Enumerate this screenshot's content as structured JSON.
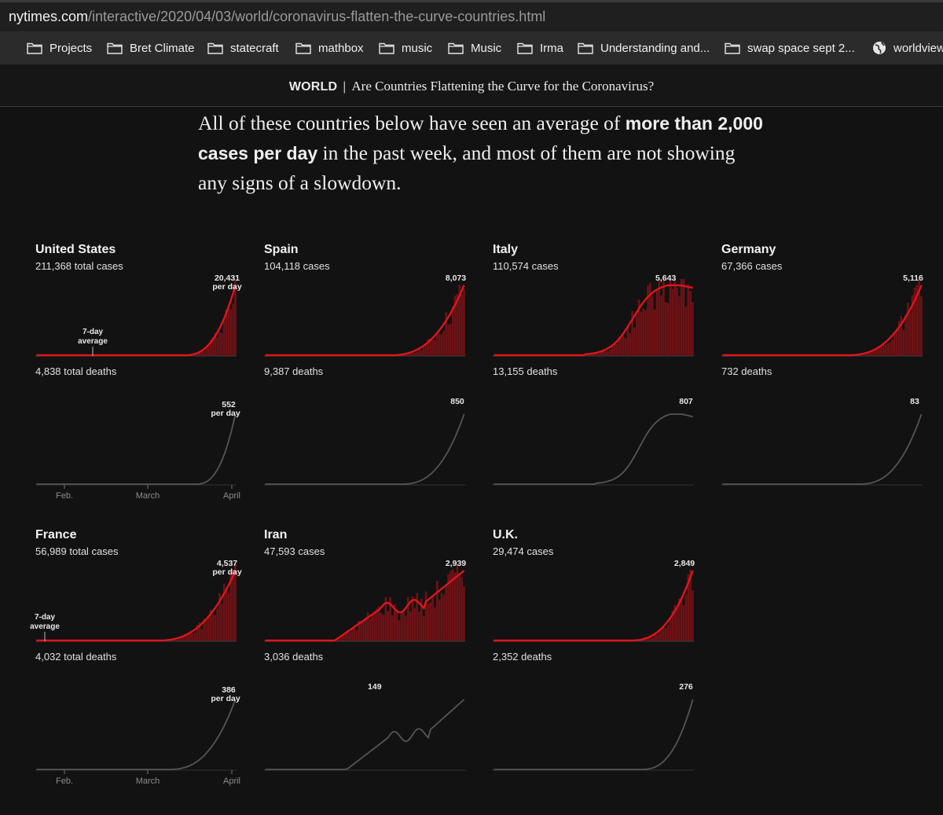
{
  "browser": {
    "url_domain": "nytimes.com",
    "url_path": "/interactive/2020/04/03/world/coronavirus-flatten-the-curve-countries.html",
    "bookmarks": [
      {
        "label": "Projects",
        "icon": "folder-icon"
      },
      {
        "label": "Bret Climate",
        "icon": "folder-icon"
      },
      {
        "label": "statecraft",
        "icon": "folder-icon"
      },
      {
        "label": "mathbox",
        "icon": "folder-icon"
      },
      {
        "label": "music",
        "icon": "folder-icon"
      },
      {
        "label": "Music",
        "icon": "folder-icon"
      },
      {
        "label": "Irma",
        "icon": "folder-icon"
      },
      {
        "label": "Understanding and...",
        "icon": "folder-icon"
      },
      {
        "label": "swap space sept 2...",
        "icon": "folder-icon"
      },
      {
        "label": "worldview",
        "icon": "globe-icon"
      }
    ]
  },
  "header": {
    "section": "WORLD",
    "separator": "|",
    "title": "Are Countries Flattening the Curve for the Coronavirus?"
  },
  "lede": {
    "part1": "All of these countries below have seen an average of ",
    "bold1": "more than 2,000 cases per day",
    "part2": " in the past week, and most of them are not showing any signs of a slowdown."
  },
  "labels": {
    "seven_day_line1": "7-day",
    "seven_day_line2": "average",
    "per_day": "per day",
    "axis_feb": "Feb.",
    "axis_march": "March",
    "axis_april": "April"
  },
  "colors": {
    "background": "#121212",
    "case_line": "#e0151c",
    "case_bars": "#6e1216",
    "death_line": "#555555"
  },
  "chart_data": [
    {
      "type": "area",
      "country": "United States",
      "cases_text": "211,368 total cases",
      "cases_peak": "20,431",
      "cases_peak_value": 20431,
      "deaths_text": "4,838 total deaths",
      "deaths_peak": "552",
      "deaths_peak_value": 552,
      "onset": 0.74,
      "case_shape": "exp",
      "death_shape": "exp",
      "show_avg_label": true,
      "show_per_day": true,
      "show_axis": true
    },
    {
      "type": "area",
      "country": "Spain",
      "cases_text": "104,118 cases",
      "cases_peak": "8,073",
      "cases_peak_value": 8073,
      "deaths_text": "9,387 deaths",
      "deaths_peak": "850",
      "deaths_peak_value": 850,
      "onset": 0.62,
      "case_shape": "exp",
      "death_shape": "exp",
      "show_avg_label": false,
      "show_per_day": false,
      "show_axis": false
    },
    {
      "type": "area",
      "country": "Italy",
      "cases_text": "110,574 cases",
      "cases_peak": "5,643",
      "cases_peak_value": 5643,
      "deaths_text": "13,155 deaths",
      "deaths_peak": "807",
      "deaths_peak_value": 807,
      "onset": 0.45,
      "case_shape": "plateau",
      "death_shape": "plateau",
      "show_avg_label": false,
      "show_per_day": false,
      "show_axis": false
    },
    {
      "type": "area",
      "country": "Germany",
      "cases_text": "67,366 cases",
      "cases_peak": "5,116",
      "cases_peak_value": 5116,
      "deaths_text": "732 deaths",
      "deaths_peak": "83",
      "deaths_peak_value": 83,
      "onset": 0.62,
      "case_shape": "exp",
      "death_shape": "exp",
      "show_avg_label": false,
      "show_per_day": false,
      "show_axis": false
    },
    {
      "type": "area",
      "country": "France",
      "cases_text": "56,989 total cases",
      "cases_peak": "4,537",
      "cases_peak_value": 4537,
      "deaths_text": "4,032 total deaths",
      "deaths_peak": "386",
      "deaths_peak_value": 386,
      "onset": 0.6,
      "case_shape": "exp",
      "death_shape": "exp",
      "show_avg_label": true,
      "show_per_day": true,
      "show_axis": true
    },
    {
      "type": "area",
      "country": "Iran",
      "cases_text": "47,593 cases",
      "cases_peak": "2,939",
      "cases_peak_value": 2939,
      "deaths_text": "3,036 deaths",
      "deaths_peak": "149",
      "deaths_peak_value": 149,
      "onset": 0.35,
      "case_shape": "iran",
      "death_shape": "iran",
      "show_avg_label": false,
      "show_per_day": false,
      "show_axis": false
    },
    {
      "type": "area",
      "country": "U.K.",
      "cases_text": "29,474 cases",
      "cases_peak": "2,849",
      "cases_peak_value": 2849,
      "deaths_text": "2,352 deaths",
      "deaths_peak": "276",
      "deaths_peak_value": 276,
      "onset": 0.68,
      "case_shape": "exp",
      "death_shape": "exp",
      "show_avg_label": false,
      "show_per_day": false,
      "show_axis": false
    }
  ]
}
